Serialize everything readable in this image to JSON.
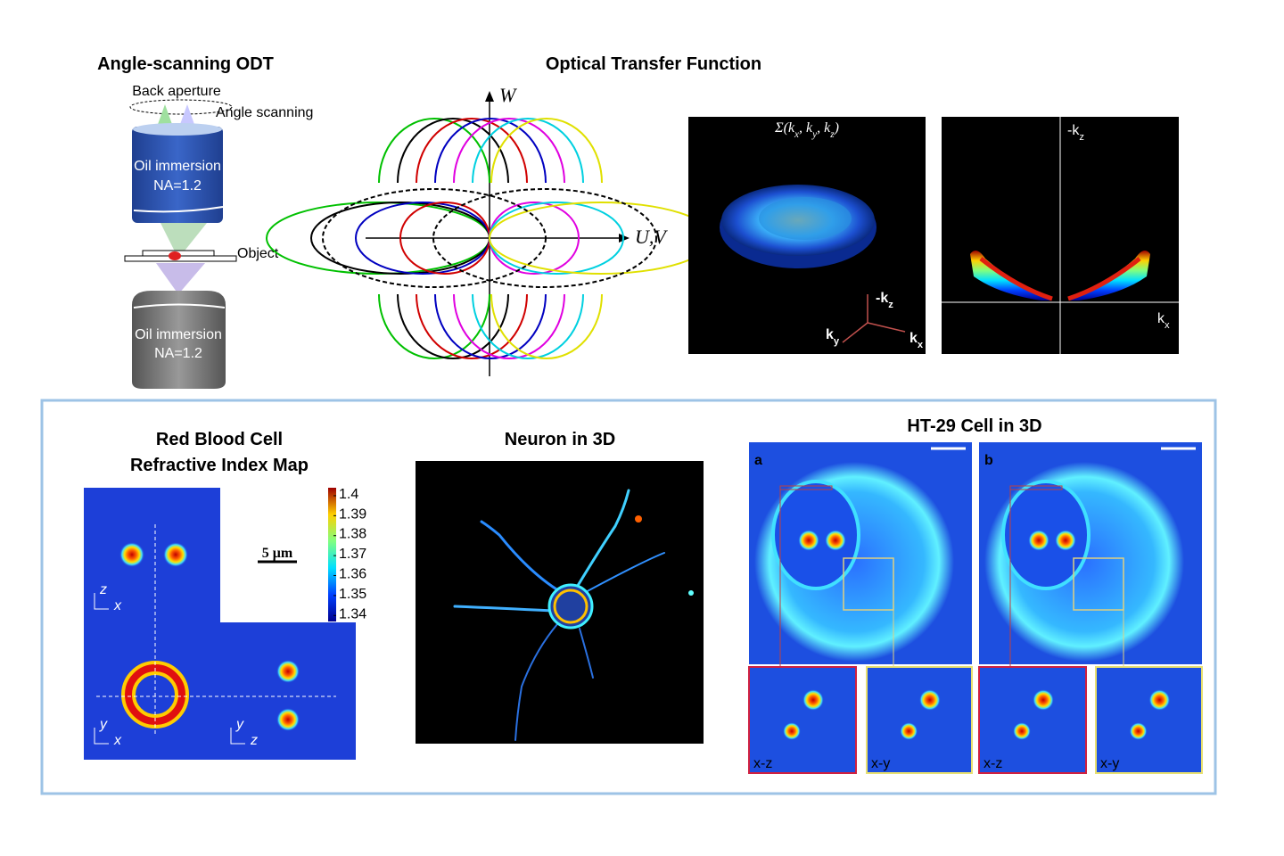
{
  "setup": {
    "title": "Angle-scanning ODT",
    "back_aperture": "Back aperture",
    "angle_scanning": "Angle scanning",
    "upper_objective": [
      "Oil immersion",
      "NA=1.2"
    ],
    "object": "Object",
    "lower_objective": [
      "Oil immersion",
      "NA=1.2"
    ]
  },
  "otf": {
    "title": "Optical Transfer Function",
    "w_axis": "W",
    "uv_axis": "U,V",
    "volume_label": [
      "Σ(k",
      "x",
      ", k",
      "y",
      ", k",
      "z",
      ")"
    ],
    "volume_axes": {
      "kz": [
        "-k",
        "z"
      ],
      "ky": [
        "k",
        "y"
      ],
      "kx": [
        "k",
        "x"
      ]
    },
    "section_axes": {
      "kz": [
        "-k",
        "z"
      ],
      "kx": [
        "k",
        "x"
      ]
    }
  },
  "rbc": {
    "title": [
      "Red Blood Cell",
      "Refractive Index Map"
    ],
    "scale_bar": "5 μm",
    "colorbar": {
      "lim": [
        1.337,
        1.404
      ],
      "ticks": [
        1.4,
        1.39,
        1.38,
        1.37,
        1.36,
        1.35,
        1.34
      ]
    },
    "axes": [
      [
        "z",
        "x"
      ],
      [
        "y",
        "x"
      ],
      [
        "y",
        "z"
      ]
    ]
  },
  "neuron": {
    "title": "Neuron in 3D"
  },
  "ht29": {
    "title": "HT-29 Cell in 3D",
    "panels": [
      "a",
      "b"
    ],
    "insets": [
      "x-z",
      "x-y",
      "x-z",
      "x-y"
    ]
  }
}
